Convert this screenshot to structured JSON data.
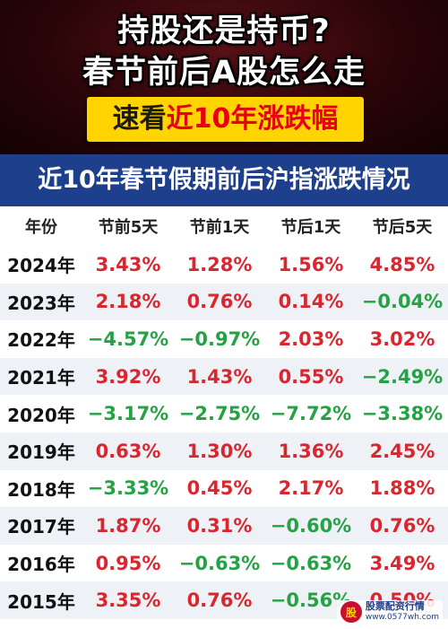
{
  "header": {
    "line1": "持股还是持币?",
    "line2": "春节前后A股怎么走",
    "badge_prefix": "速看",
    "badge_highlight": "近10年涨跌幅"
  },
  "title": "近10年春节假期前后沪指涨跌情况",
  "table": {
    "columns": [
      "年份",
      "节前5天",
      "节前1天",
      "节后1天",
      "节后5天"
    ],
    "rows": [
      {
        "year": "2024年",
        "values": [
          "3.43%",
          "1.28%",
          "1.56%",
          "4.85%"
        ],
        "dir": [
          "up",
          "up",
          "up",
          "up"
        ]
      },
      {
        "year": "2023年",
        "values": [
          "2.18%",
          "0.76%",
          "0.14%",
          "−0.04%"
        ],
        "dir": [
          "up",
          "up",
          "up",
          "down"
        ]
      },
      {
        "year": "2022年",
        "values": [
          "−4.57%",
          "−0.97%",
          "2.03%",
          "3.02%"
        ],
        "dir": [
          "down",
          "down",
          "up",
          "up"
        ]
      },
      {
        "year": "2021年",
        "values": [
          "3.92%",
          "1.43%",
          "0.55%",
          "−2.49%"
        ],
        "dir": [
          "up",
          "up",
          "up",
          "down"
        ]
      },
      {
        "year": "2020年",
        "values": [
          "−3.17%",
          "−2.75%",
          "−7.72%",
          "−3.38%"
        ],
        "dir": [
          "down",
          "down",
          "down",
          "down"
        ]
      },
      {
        "year": "2019年",
        "values": [
          "0.63%",
          "1.30%",
          "1.36%",
          "2.45%"
        ],
        "dir": [
          "up",
          "up",
          "up",
          "up"
        ]
      },
      {
        "year": "2018年",
        "values": [
          "−3.33%",
          "0.45%",
          "2.17%",
          "1.88%"
        ],
        "dir": [
          "down",
          "up",
          "up",
          "up"
        ]
      },
      {
        "year": "2017年",
        "values": [
          "1.87%",
          "0.31%",
          "−0.60%",
          "0.76%"
        ],
        "dir": [
          "up",
          "up",
          "down",
          "up"
        ]
      },
      {
        "year": "2016年",
        "values": [
          "0.95%",
          "−0.63%",
          "−0.63%",
          "3.49%"
        ],
        "dir": [
          "up",
          "down",
          "down",
          "up"
        ]
      },
      {
        "year": "2015年",
        "values": [
          "3.35%",
          "0.76%",
          "−0.56%",
          "0.50%"
        ],
        "dir": [
          "up",
          "up",
          "down",
          "up"
        ]
      }
    ]
  },
  "colors": {
    "up": "#d9262f",
    "down": "#25a244",
    "title_bar": "#1d3f8c",
    "badge": "#ffd400"
  },
  "watermark": {
    "logo_text": "股",
    "name": "股票配资行情",
    "url": "www.0577wh.com"
  }
}
